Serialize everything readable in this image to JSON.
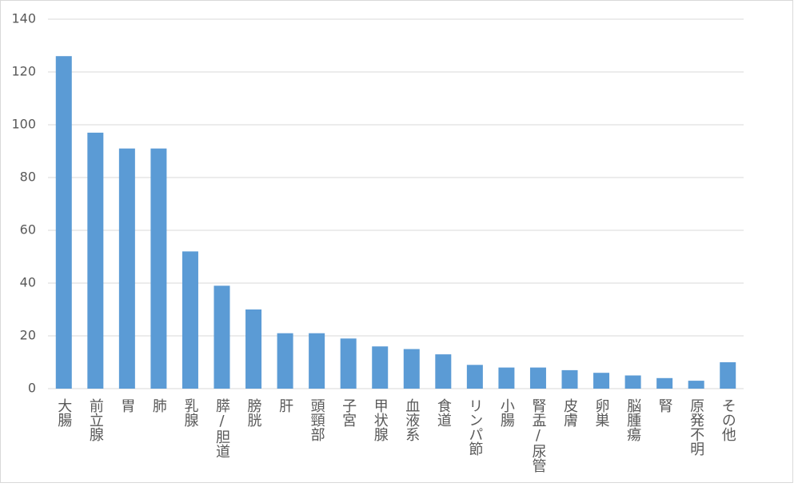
{
  "chart_data": {
    "type": "bar",
    "categories": [
      "大腸",
      "前立腺",
      "胃",
      "肺",
      "乳腺",
      "膵/胆道",
      "膀胱",
      "肝",
      "頭頸部",
      "子宮",
      "甲状腺",
      "血液系",
      "食道",
      "リンパ節",
      "小腸",
      "腎盂/尿管",
      "皮膚",
      "卵巣",
      "脳腫瘍",
      "腎",
      "原発不明",
      "その他"
    ],
    "values": [
      126,
      97,
      91,
      91,
      52,
      39,
      30,
      21,
      21,
      19,
      16,
      15,
      13,
      9,
      8,
      8,
      7,
      6,
      5,
      4,
      3,
      10
    ],
    "color": "#5b9bd5",
    "ylim": [
      0,
      140
    ],
    "yticks": [
      0,
      20,
      40,
      60,
      80,
      100,
      120,
      140
    ],
    "grid": true
  }
}
